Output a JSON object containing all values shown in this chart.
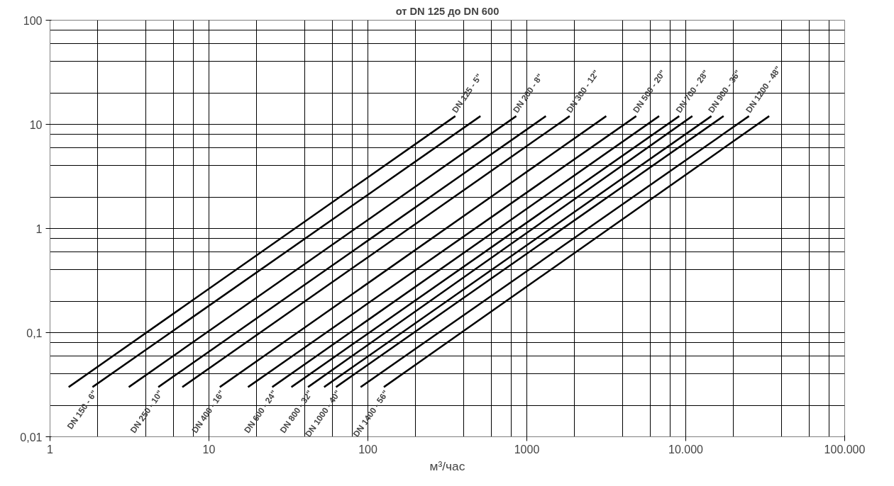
{
  "chart_data": {
    "type": "line",
    "title": "от DN 125 до DN 600",
    "xlabel": "м³/час",
    "log": "xy",
    "grid": true,
    "marker": "none",
    "line_style": "solid",
    "xlim": [
      1,
      100000
    ],
    "ylim": [
      0.01,
      100
    ],
    "xticks": [
      1,
      10,
      100,
      1000,
      {
        "value": 10000,
        "label": "10.000"
      },
      {
        "value": 100000,
        "label": "100.000"
      }
    ],
    "yticks": [
      {
        "value": 0.01,
        "label": "0,01"
      },
      {
        "value": 0.1,
        "label": "0,1"
      },
      1,
      10,
      100
    ],
    "series": [
      {
        "color": "#000000",
        "x": [
          1.31,
          355
        ],
        "values": [
          0.03,
          12
        ]
      },
      {
        "color": "#000000",
        "x": [
          1.85,
          511
        ],
        "values": [
          0.03,
          12
        ]
      },
      {
        "color": "#000000",
        "x": [
          3.13,
          858
        ],
        "values": [
          0.03,
          12
        ]
      },
      {
        "color": "#000000",
        "x": [
          4.8,
          1318
        ],
        "values": [
          0.03,
          12
        ]
      },
      {
        "color": "#000000",
        "x": [
          6.8,
          1860
        ],
        "values": [
          0.03,
          12
        ]
      },
      {
        "color": "#000000",
        "x": [
          11.7,
          3160
        ],
        "values": [
          0.03,
          12
        ]
      },
      {
        "color": "#000000",
        "x": [
          17.6,
          4880
        ],
        "values": [
          0.03,
          12
        ]
      },
      {
        "color": "#000000",
        "x": [
          25,
          6800
        ],
        "values": [
          0.03,
          12
        ]
      },
      {
        "color": "#000000",
        "x": [
          33,
          9100
        ],
        "values": [
          0.03,
          12
        ]
      },
      {
        "color": "#000000",
        "x": [
          42,
          11000
        ],
        "values": [
          0.03,
          12
        ]
      },
      {
        "color": "#000000",
        "x": [
          53,
          14500
        ],
        "values": [
          0.03,
          12
        ]
      },
      {
        "color": "#000000",
        "x": [
          63,
          17300
        ],
        "values": [
          0.03,
          12
        ]
      },
      {
        "color": "#000000",
        "x": [
          90,
          25000
        ],
        "values": [
          0.03,
          12
        ]
      },
      {
        "color": "#000000",
        "x": [
          126,
          33500
        ],
        "values": [
          0.03,
          12
        ]
      }
    ],
    "annotations": [
      {
        "text": "DN 125 - 5\"",
        "x": 355,
        "y": 12
      },
      {
        "text": "DN 150 - 6\"",
        "x": 1.85,
        "y": 0.03
      },
      {
        "text": "DN 200 - 8\"",
        "x": 858,
        "y": 12
      },
      {
        "text": "DN 250 - 10\"",
        "x": 4.8,
        "y": 0.03
      },
      {
        "text": "DN 300 - 12\"",
        "x": 1860,
        "y": 12
      },
      {
        "text": "DN 400 - 16\"",
        "x": 11.7,
        "y": 0.03
      },
      {
        "text": "DN 500 - 20\"",
        "x": 4880,
        "y": 12
      },
      {
        "text": "DN 600 - 24\"",
        "x": 25,
        "y": 0.03
      },
      {
        "text": "DN 700 - 28\"",
        "x": 9100,
        "y": 12
      },
      {
        "text": "DN 800 - 32\"",
        "x": 42,
        "y": 0.03
      },
      {
        "text": "DN 900 - 36\"",
        "x": 14500,
        "y": 12
      },
      {
        "text": "DN 1000 - 40\"",
        "x": 63,
        "y": 0.03
      },
      {
        "text": "DN 1200 - 48\"",
        "x": 25000,
        "y": 12
      },
      {
        "text": "DN 1400 - 56\"",
        "x": 126,
        "y": 0.03
      }
    ]
  }
}
